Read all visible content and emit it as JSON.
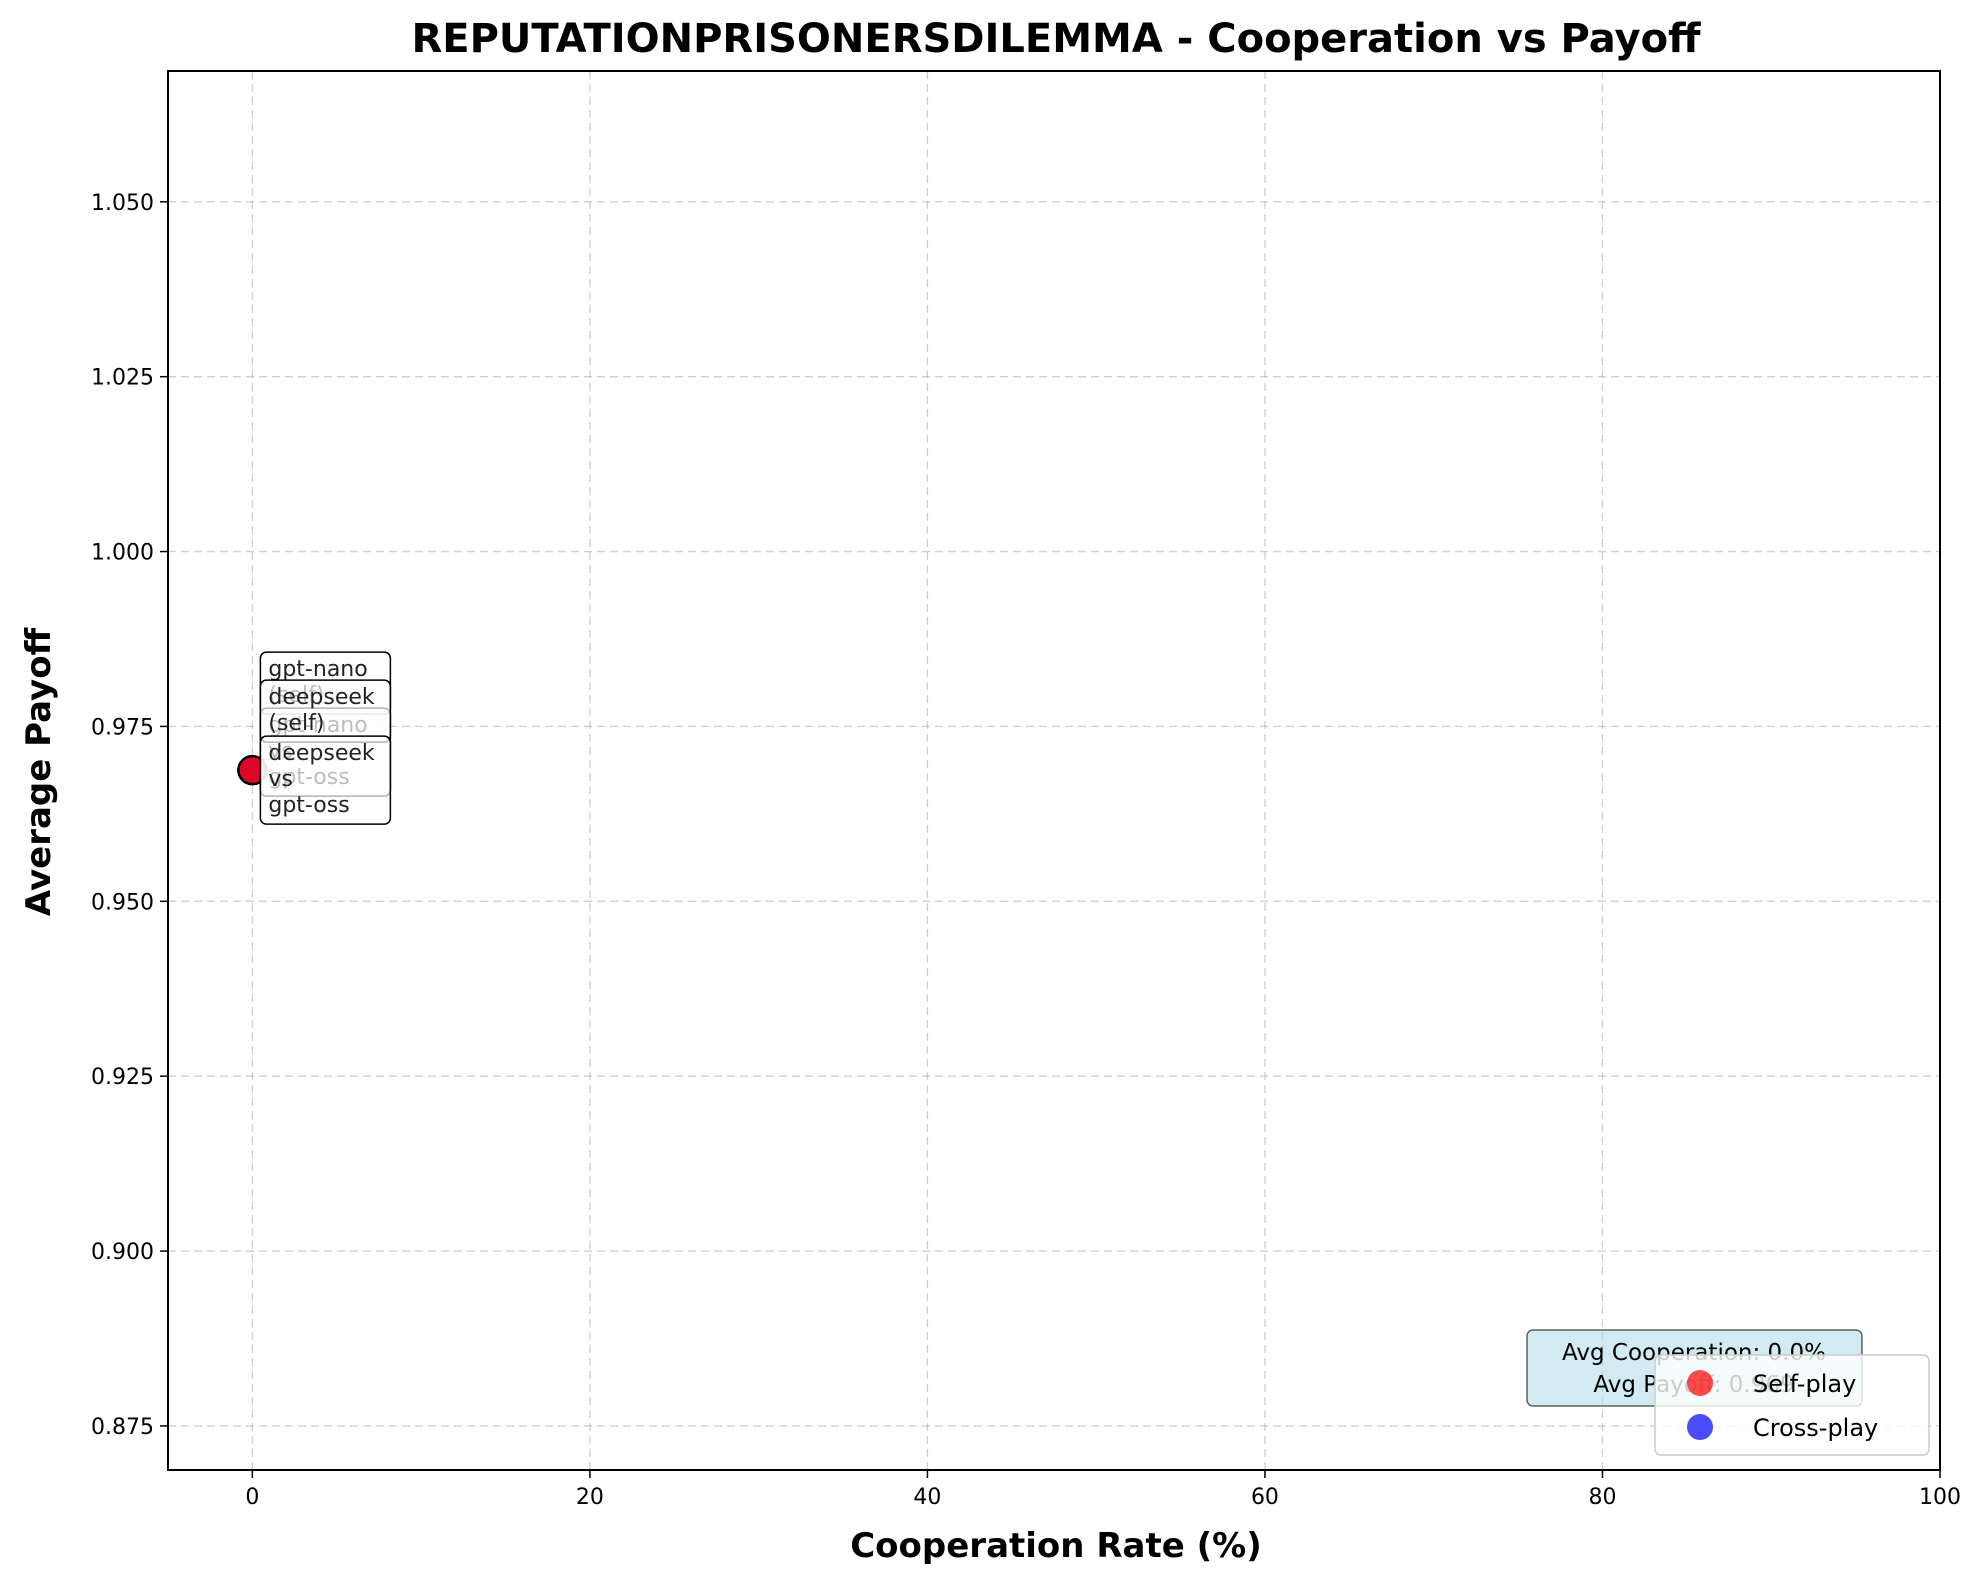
{
  "chart_data": {
    "type": "scatter",
    "title": "REPUTATIONPRISONERSDILEMMA - Cooperation vs Payoff",
    "xlabel": "Cooperation Rate (%)",
    "ylabel": "Average Payoff",
    "xlim": [
      -5,
      100
    ],
    "ylim": [
      0.8687,
      1.0687
    ],
    "xticks": [
      0,
      20,
      40,
      60,
      80,
      100
    ],
    "yticks": [
      0.875,
      0.9,
      0.925,
      0.95,
      0.975,
      1.0,
      1.025,
      1.05
    ],
    "ytick_labels": [
      "0.875",
      "0.900",
      "0.925",
      "0.950",
      "0.975",
      "1.000",
      "1.025",
      "1.050"
    ],
    "grid": true,
    "series": [
      {
        "name": "Self-play",
        "color": "#ff0000",
        "points": [
          {
            "x": 0,
            "y": 0.96875,
            "label": [
              "gpt-nano",
              "(self)"
            ]
          },
          {
            "x": 0,
            "y": 0.96875,
            "label": [
              "deepseek",
              "(self)"
            ]
          }
        ]
      },
      {
        "name": "Cross-play",
        "color": "#0000ff",
        "points": [
          {
            "x": 0,
            "y": 0.96875,
            "label": [
              "gpt-nano",
              "vs",
              "gpt-oss"
            ]
          },
          {
            "x": 0,
            "y": 0.96875,
            "label": [
              "deepseek",
              "vs",
              "gpt-oss"
            ]
          }
        ]
      }
    ],
    "legend": {
      "placement": "lower right",
      "entries": [
        "Self-play",
        "Cross-play"
      ]
    },
    "stats_box": {
      "line1": "Avg Cooperation: 0.0%",
      "line2": "Avg Payoff: 0.969",
      "color": "#add8e6",
      "placement": "lower right"
    }
  }
}
